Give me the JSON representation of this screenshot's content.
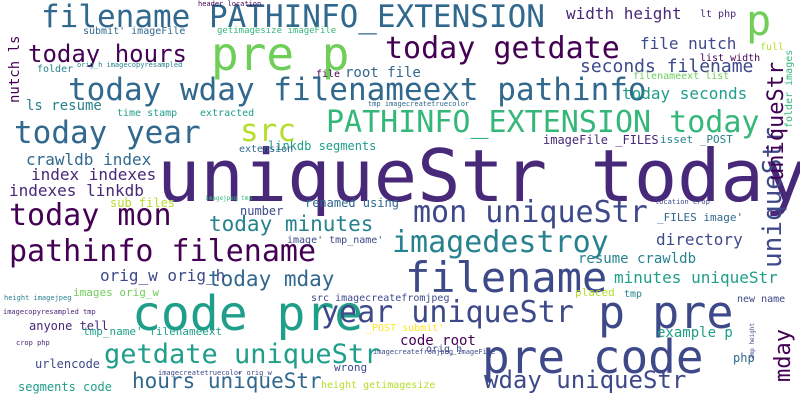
{
  "palette": [
    "#440154",
    "#482878",
    "#3e4989",
    "#31688e",
    "#26828e",
    "#1f9e89",
    "#35b779",
    "#6ece58",
    "#b5de2b",
    "#fde725"
  ],
  "words": [
    {
      "text": "uniqueStr today",
      "color": "#482878",
      "vertical": false
    },
    {
      "text": "pre code",
      "color": "#3e4989",
      "vertical": false
    },
    {
      "text": "code pre",
      "color": "#1f9e89",
      "vertical": false
    },
    {
      "text": "p pre",
      "color": "#3e4989",
      "vertical": false
    },
    {
      "text": "pre p",
      "color": "#6ece58",
      "vertical": false
    },
    {
      "text": "filename",
      "color": "#3e4989",
      "vertical": false
    },
    {
      "text": "filename PATHINFO_EXTENSION",
      "color": "#31688e",
      "vertical": false
    },
    {
      "text": "p",
      "color": "#6ece58",
      "vertical": false
    },
    {
      "text": "today wday filenameext pathinfo",
      "color": "#31688e",
      "vertical": false
    },
    {
      "text": "PATHINFO_EXTENSION today",
      "color": "#35b779",
      "vertical": false
    },
    {
      "text": "today getdate",
      "color": "#440154",
      "vertical": false
    },
    {
      "text": "today year",
      "color": "#31688e",
      "vertical": false
    },
    {
      "text": "src",
      "color": "#b5de2b",
      "vertical": false
    },
    {
      "text": "today hours",
      "color": "#440154",
      "vertical": false
    },
    {
      "text": "today mon",
      "color": "#440154",
      "vertical": false
    },
    {
      "text": "pathinfo filename",
      "color": "#440154",
      "vertical": false
    },
    {
      "text": "imagedestroy",
      "color": "#26828e",
      "vertical": false
    },
    {
      "text": "mon uniqueStr",
      "color": "#3e4989",
      "vertical": false
    },
    {
      "text": "year uniqueStr",
      "color": "#3e4989",
      "vertical": false
    },
    {
      "text": "getdate uniqueStr",
      "color": "#1f9e89",
      "vertical": false
    },
    {
      "text": "wday uniqueStr",
      "color": "#3e4989",
      "vertical": false
    },
    {
      "text": "today mday",
      "color": "#31688e",
      "vertical": false
    },
    {
      "text": "hours uniqueStr",
      "color": "#31688e",
      "vertical": false
    },
    {
      "text": "today minutes",
      "color": "#26828e",
      "vertical": false
    },
    {
      "text": "width height",
      "color": "#482878",
      "vertical": false
    },
    {
      "text": "seconds filename",
      "color": "#3e4989",
      "vertical": false
    },
    {
      "text": "today seconds",
      "color": "#1f9e89",
      "vertical": false
    },
    {
      "text": "file nutch",
      "color": "#3e4989",
      "vertical": false
    },
    {
      "text": "directory",
      "color": "#3e4989",
      "vertical": false
    },
    {
      "text": "minutes uniqueStr",
      "color": "#1f9e89",
      "vertical": false
    },
    {
      "text": "resume crawldb",
      "color": "#26828e",
      "vertical": false
    },
    {
      "text": "crawldb index",
      "color": "#31688e",
      "vertical": false
    },
    {
      "text": "index indexes",
      "color": "#482878",
      "vertical": false
    },
    {
      "text": "indexes linkdb",
      "color": "#482878",
      "vertical": false
    },
    {
      "text": "orig_w orig_h",
      "color": "#3e4989",
      "vertical": false
    },
    {
      "text": "root file",
      "color": "#31688e",
      "vertical": false
    },
    {
      "text": "ls resume",
      "color": "#26828e",
      "vertical": false
    },
    {
      "text": "linkdb segments",
      "color": "#1f9e89",
      "vertical": false
    },
    {
      "text": "example p",
      "color": "#1f9e89",
      "vertical": false
    },
    {
      "text": "code root",
      "color": "#440154",
      "vertical": false
    },
    {
      "text": "imageFile _FILES",
      "color": "#482878",
      "vertical": false
    },
    {
      "text": "isset _POST",
      "color": "#26828e",
      "vertical": false
    },
    {
      "text": "number",
      "color": "#3e4989",
      "vertical": false
    },
    {
      "text": "sub files",
      "color": "#b5de2b",
      "vertical": false
    },
    {
      "text": "renamed using",
      "color": "#31688e",
      "vertical": false
    },
    {
      "text": "images orig_w",
      "color": "#6ece58",
      "vertical": false
    },
    {
      "text": "anyone tell",
      "color": "#482878",
      "vertical": false
    },
    {
      "text": "tmp_name' filenameext",
      "color": "#1f9e89",
      "vertical": false
    },
    {
      "text": "urlencode",
      "color": "#3e4989",
      "vertical": false
    },
    {
      "text": "segments code",
      "color": "#1f9e89",
      "vertical": false
    },
    {
      "text": "src imagecreatefromjpeg",
      "color": "#3e4989",
      "vertical": false
    },
    {
      "text": "image' tmp_name'",
      "color": "#3e4989",
      "vertical": false
    },
    {
      "text": "placed",
      "color": "#b5de2b",
      "vertical": false
    },
    {
      "text": "_FILES image'",
      "color": "#31688e",
      "vertical": false
    },
    {
      "text": "_POST submit'",
      "color": "#fde725",
      "vertical": false
    },
    {
      "text": "orig_h",
      "color": "#3e4989",
      "vertical": false
    },
    {
      "text": "wrong",
      "color": "#3e4989",
      "vertical": false
    },
    {
      "text": "height getimagesize",
      "color": "#b5de2b",
      "vertical": false
    },
    {
      "text": "php",
      "color": "#31688e",
      "vertical": false
    },
    {
      "text": "tmp",
      "color": "#26828e",
      "vertical": false
    },
    {
      "text": "new name",
      "color": "#3e4989",
      "vertical": false
    },
    {
      "text": "submit' imageFile",
      "color": "#31688e",
      "vertical": false
    },
    {
      "text": "getimagesize imageFile",
      "color": "#35b779",
      "vertical": false
    },
    {
      "text": "header location",
      "color": "#440154",
      "vertical": false
    },
    {
      "text": "lt php",
      "color": "#482878",
      "vertical": false
    },
    {
      "text": "filenameext list",
      "color": "#6ece58",
      "vertical": false
    },
    {
      "text": "list width",
      "color": "#440154",
      "vertical": false
    },
    {
      "text": "full",
      "color": "#b5de2b",
      "vertical": false
    },
    {
      "text": "folder",
      "color": "#26828e",
      "vertical": false
    },
    {
      "text": "file",
      "color": "#440154",
      "vertical": false
    },
    {
      "text": "orig_h imagecopyresampled",
      "color": "#26828e",
      "vertical": false
    },
    {
      "text": "tmp imagecreatetruecolor",
      "color": "#31688e",
      "vertical": false
    },
    {
      "text": "time stamp",
      "color": "#1f9e89",
      "vertical": false
    },
    {
      "text": "extracted",
      "color": "#1f9e89",
      "vertical": false
    },
    {
      "text": "extension",
      "color": "#31688e",
      "vertical": false
    },
    {
      "text": "imagejpeg tmp",
      "color": "#35b779",
      "vertical": false
    },
    {
      "text": "location crop",
      "color": "#3e4989",
      "vertical": false
    },
    {
      "text": "height imagejpeg",
      "color": "#26828e",
      "vertical": false
    },
    {
      "text": "imagecopyresampled tmp",
      "color": "#482878",
      "vertical": false
    },
    {
      "text": "crop php",
      "color": "#482878",
      "vertical": false
    },
    {
      "text": "imagecreatetruecolor orig_w",
      "color": "#3e4989",
      "vertical": false
    },
    {
      "text": "imagecreatefromjpeg imageFile",
      "color": "#3e4989",
      "vertical": false
    },
    {
      "text": "uniqueStr",
      "color": "#3e4989",
      "vertical": true
    },
    {
      "text": "uniqueStr",
      "color": "#440154",
      "vertical": true
    },
    {
      "text": "mday",
      "color": "#440154",
      "vertical": true
    },
    {
      "text": "nutch ls",
      "color": "#440154",
      "vertical": true
    },
    {
      "text": "folder images",
      "color": "#35b779",
      "vertical": true
    },
    {
      "text": "amp height",
      "color": "#3e4989",
      "vertical": true
    }
  ]
}
